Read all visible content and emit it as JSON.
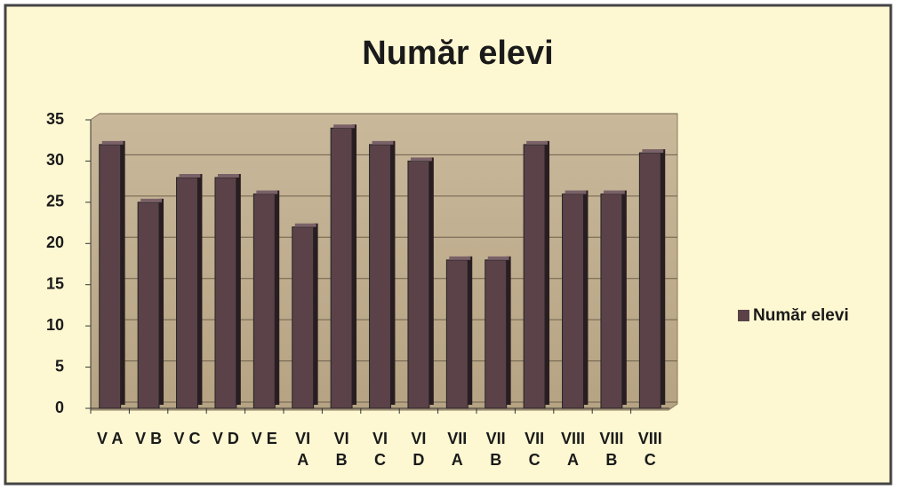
{
  "chart_data": {
    "type": "bar",
    "title": "Număr elevi",
    "categories": [
      "V A",
      "V B",
      "V C",
      "V D",
      "V E",
      "VI\nA",
      "VI\nB",
      "VI\nC",
      "VI\nD",
      "VII\nA",
      "VII\nB",
      "VII\nC",
      "VIII\nA",
      "VIII\nB",
      "VIII\nC"
    ],
    "series": [
      {
        "name": "Număr elevi",
        "color": "#5b4249",
        "values": [
          32,
          25,
          28,
          28,
          26,
          22,
          34,
          32,
          30,
          18,
          18,
          32,
          26,
          26,
          31
        ]
      }
    ],
    "ylim": [
      0,
      35
    ],
    "yticks": [
      0,
      5,
      10,
      15,
      20,
      25,
      30,
      35
    ],
    "grid": true,
    "legend": "right"
  }
}
